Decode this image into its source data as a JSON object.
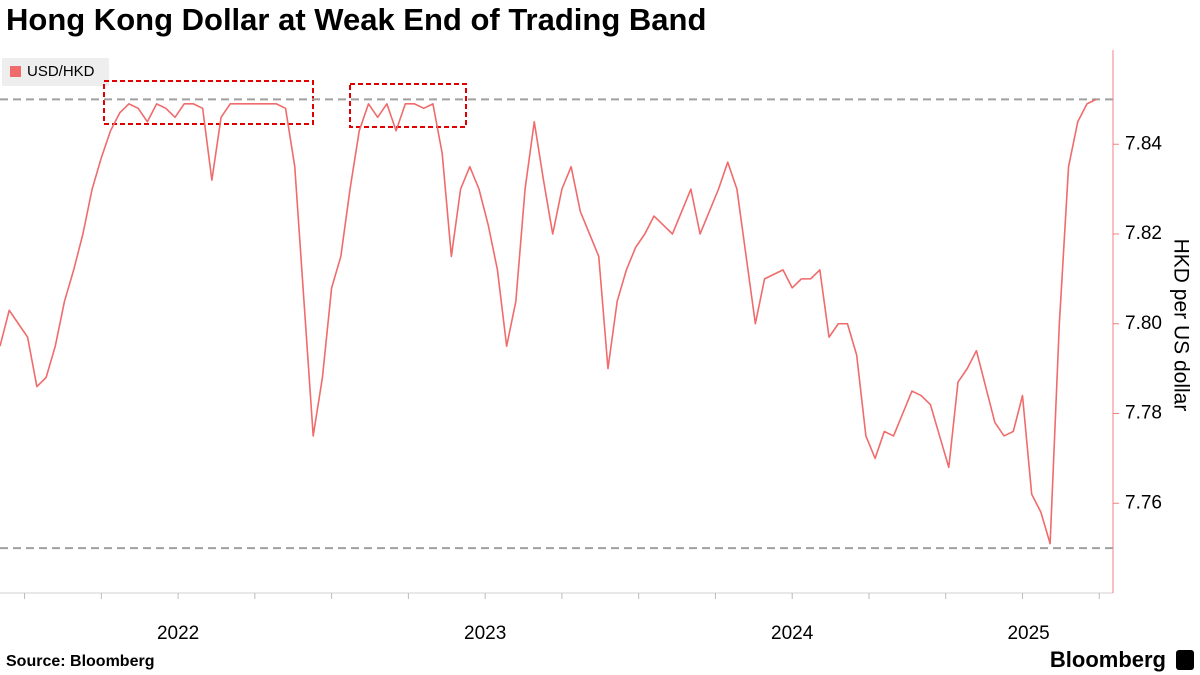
{
  "chart_data": {
    "type": "line",
    "title": "Hong Kong Dollar at Weak End of Trading Band",
    "y_label": "HKD per US dollar",
    "source": "Source: Bloomberg",
    "branding": "Bloomberg",
    "xlim": [
      2021.92,
      2025.535
    ],
    "xticks": [
      {
        "value": 2022.5,
        "label": "2022"
      },
      {
        "value": 2023.5,
        "label": "2023"
      },
      {
        "value": 2024.5,
        "label": "2024"
      },
      {
        "value": 2025.27,
        "label": "2025"
      }
    ],
    "xminorticks": [
      2022,
      2022.25,
      2022.5,
      2022.75,
      2023,
      2023.25,
      2023.5,
      2023.75,
      2024,
      2024.25,
      2024.5,
      2024.75,
      2025,
      2025.25,
      2025.5
    ],
    "ylim": [
      7.74,
      7.861
    ],
    "yticks": [
      7.76,
      7.78,
      {
        "value": 7.8,
        "label": "7.80"
      },
      7.82,
      7.84
    ],
    "reference_lines": [
      7.85,
      7.75
    ],
    "grid": false,
    "series": [
      {
        "name": "USD/HKD",
        "color": "#f06b6b",
        "x": [
          2021.92,
          2021.95,
          2021.98,
          2022.01,
          2022.04,
          2022.07,
          2022.1,
          2022.13,
          2022.16,
          2022.19,
          2022.22,
          2022.25,
          2022.28,
          2022.31,
          2022.34,
          2022.37,
          2022.4,
          2022.43,
          2022.46,
          2022.49,
          2022.52,
          2022.55,
          2022.58,
          2022.61,
          2022.64,
          2022.67,
          2022.7,
          2022.73,
          2022.76,
          2022.79,
          2022.82,
          2022.85,
          2022.88,
          2022.91,
          2022.94,
          2022.97,
          2023.0,
          2023.03,
          2023.06,
          2023.09,
          2023.12,
          2023.15,
          2023.18,
          2023.21,
          2023.24,
          2023.27,
          2023.3,
          2023.33,
          2023.36,
          2023.39,
          2023.42,
          2023.45,
          2023.48,
          2023.51,
          2023.54,
          2023.57,
          2023.6,
          2023.63,
          2023.66,
          2023.69,
          2023.72,
          2023.75,
          2023.78,
          2023.81,
          2023.84,
          2023.87,
          2023.9,
          2023.93,
          2023.96,
          2023.99,
          2024.02,
          2024.05,
          2024.08,
          2024.11,
          2024.14,
          2024.17,
          2024.2,
          2024.23,
          2024.26,
          2024.29,
          2024.32,
          2024.35,
          2024.38,
          2024.41,
          2024.44,
          2024.47,
          2024.5,
          2024.53,
          2024.56,
          2024.59,
          2024.62,
          2024.65,
          2024.68,
          2024.71,
          2024.74,
          2024.77,
          2024.8,
          2024.83,
          2024.86,
          2024.89,
          2024.92,
          2024.95,
          2024.98,
          2025.01,
          2025.04,
          2025.07,
          2025.1,
          2025.13,
          2025.16,
          2025.19,
          2025.22,
          2025.25,
          2025.28,
          2025.31,
          2025.34,
          2025.37,
          2025.4,
          2025.43,
          2025.46,
          2025.49
        ],
        "values": [
          7.795,
          7.803,
          7.8,
          7.797,
          7.786,
          7.788,
          7.795,
          7.805,
          7.812,
          7.82,
          7.83,
          7.837,
          7.843,
          7.847,
          7.849,
          7.848,
          7.845,
          7.849,
          7.848,
          7.846,
          7.849,
          7.849,
          7.848,
          7.832,
          7.846,
          7.849,
          7.849,
          7.849,
          7.849,
          7.849,
          7.849,
          7.848,
          7.835,
          7.805,
          7.775,
          7.788,
          7.808,
          7.815,
          7.83,
          7.843,
          7.849,
          7.846,
          7.849,
          7.843,
          7.849,
          7.849,
          7.848,
          7.849,
          7.838,
          7.815,
          7.83,
          7.835,
          7.83,
          7.822,
          7.812,
          7.795,
          7.805,
          7.83,
          7.845,
          7.832,
          7.82,
          7.83,
          7.835,
          7.825,
          7.82,
          7.815,
          7.79,
          7.805,
          7.812,
          7.817,
          7.82,
          7.824,
          7.822,
          7.82,
          7.825,
          7.83,
          7.82,
          7.825,
          7.83,
          7.836,
          7.83,
          7.815,
          7.8,
          7.81,
          7.811,
          7.812,
          7.808,
          7.81,
          7.81,
          7.812,
          7.797,
          7.8,
          7.8,
          7.793,
          7.775,
          7.77,
          7.776,
          7.775,
          7.78,
          7.785,
          7.784,
          7.782,
          7.775,
          7.768,
          7.787,
          7.79,
          7.794,
          7.786,
          7.778,
          7.775,
          7.776,
          7.784,
          7.762,
          7.758,
          7.751,
          7.8,
          7.835,
          7.845,
          7.849,
          7.85
        ]
      }
    ]
  }
}
